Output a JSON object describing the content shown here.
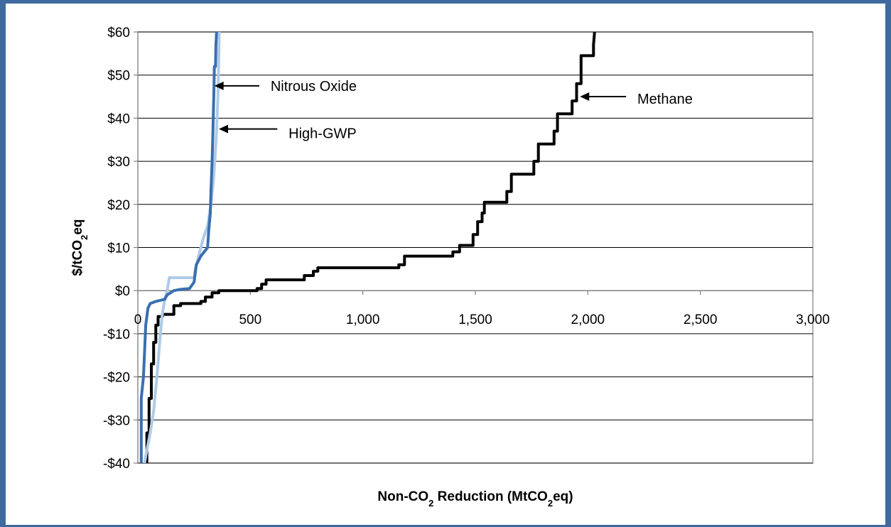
{
  "chart_data": {
    "type": "line",
    "xlabel": "Non-CO2 Reduction (MtCO2eq)",
    "xlabel_parts": {
      "prefix": "Non-CO",
      "sub": "2",
      "suffix": " Reduction (MtCO",
      "sub2": "2",
      "end": "eq)"
    },
    "ylabel_parts": {
      "prefix": "$/tCO",
      "sub": "2",
      "end": "eq"
    },
    "xlim": [
      0,
      3000
    ],
    "ylim": [
      -40,
      60
    ],
    "x_ticks": [
      0,
      500,
      1000,
      1500,
      2000,
      2500,
      3000
    ],
    "x_tick_labels": [
      "0",
      "500",
      "1,000",
      "1,500",
      "2,000",
      "2,500",
      "3,000"
    ],
    "y_ticks": [
      -40,
      -30,
      -20,
      -10,
      0,
      10,
      20,
      30,
      40,
      50,
      60
    ],
    "y_tick_labels": [
      "-$40",
      "-$30",
      "-$20",
      "-$10",
      "$0",
      "$10",
      "$20",
      "$30",
      "$40",
      "$50",
      "$60"
    ],
    "grid": true,
    "annotations": [
      {
        "text": "Nitrous Oxide",
        "arrow_to": [
          340,
          47.5
        ],
        "arrow_from": [
          540,
          47.5
        ],
        "text_at": [
          590,
          47.5
        ]
      },
      {
        "text": "High-GWP",
        "arrow_to": [
          360,
          37.5
        ],
        "arrow_from": [
          620,
          37.5
        ],
        "text_at": [
          670,
          36.5
        ]
      },
      {
        "text": "Methane",
        "arrow_to": [
          1965,
          45
        ],
        "arrow_from": [
          2170,
          45
        ],
        "text_at": [
          2220,
          44.5
        ]
      }
    ],
    "series": [
      {
        "color": "#000000",
        "points": [
          [
            40,
            -40
          ],
          [
            40,
            -33
          ],
          [
            50,
            -33
          ],
          [
            50,
            -25
          ],
          [
            60,
            -25
          ],
          [
            60,
            -17
          ],
          [
            70,
            -17
          ],
          [
            70,
            -12
          ],
          [
            80,
            -12
          ],
          [
            80,
            -8
          ],
          [
            90,
            -8
          ],
          [
            90,
            -6
          ],
          [
            110,
            -6
          ],
          [
            110,
            -5.5
          ],
          [
            160,
            -5.5
          ],
          [
            160,
            -3.5
          ],
          [
            190,
            -3.5
          ],
          [
            190,
            -3
          ],
          [
            280,
            -3
          ],
          [
            280,
            -2.5
          ],
          [
            300,
            -2.5
          ],
          [
            300,
            -1.5
          ],
          [
            330,
            -1.5
          ],
          [
            330,
            -0.5
          ],
          [
            360,
            -0.5
          ],
          [
            360,
            0
          ],
          [
            530,
            0
          ],
          [
            530,
            0.5
          ],
          [
            550,
            0.5
          ],
          [
            550,
            1.5
          ],
          [
            570,
            1.5
          ],
          [
            570,
            2.5
          ],
          [
            740,
            2.5
          ],
          [
            740,
            3.5
          ],
          [
            780,
            3.5
          ],
          [
            780,
            4.5
          ],
          [
            800,
            4.5
          ],
          [
            800,
            5.3
          ],
          [
            1160,
            5.3
          ],
          [
            1160,
            6
          ],
          [
            1185,
            6
          ],
          [
            1185,
            8
          ],
          [
            1400,
            8
          ],
          [
            1400,
            9
          ],
          [
            1430,
            9
          ],
          [
            1430,
            10.5
          ],
          [
            1490,
            10.5
          ],
          [
            1490,
            13
          ],
          [
            1510,
            13
          ],
          [
            1510,
            16
          ],
          [
            1530,
            16
          ],
          [
            1530,
            18
          ],
          [
            1540,
            18
          ],
          [
            1540,
            20.5
          ],
          [
            1640,
            20.5
          ],
          [
            1640,
            23
          ],
          [
            1660,
            23
          ],
          [
            1660,
            27
          ],
          [
            1760,
            27
          ],
          [
            1760,
            30
          ],
          [
            1780,
            30
          ],
          [
            1780,
            34
          ],
          [
            1850,
            34
          ],
          [
            1850,
            37
          ],
          [
            1865,
            37
          ],
          [
            1865,
            41
          ],
          [
            1930,
            41
          ],
          [
            1930,
            44
          ],
          [
            1950,
            44
          ],
          [
            1950,
            48
          ],
          [
            1970,
            48
          ],
          [
            1970,
            54.5
          ],
          [
            2025,
            54.5
          ],
          [
            2025,
            57
          ],
          [
            2030,
            60
          ]
        ]
      },
      {
        "color": "#aecbe8",
        "points": [
          [
            30,
            -40
          ],
          [
            40,
            -37
          ],
          [
            55,
            -33
          ],
          [
            70,
            -28
          ],
          [
            85,
            -20
          ],
          [
            100,
            -10
          ],
          [
            110,
            -5
          ],
          [
            120,
            -2
          ],
          [
            130,
            0
          ],
          [
            140,
            3
          ],
          [
            250,
            3
          ],
          [
            255,
            5
          ],
          [
            275,
            9
          ],
          [
            290,
            12
          ],
          [
            310,
            15
          ],
          [
            325,
            20
          ],
          [
            335,
            25
          ],
          [
            342,
            30
          ],
          [
            348,
            35
          ],
          [
            352,
            40
          ],
          [
            356,
            45
          ],
          [
            358,
            50
          ],
          [
            360,
            55
          ],
          [
            362,
            60
          ]
        ]
      },
      {
        "color": "#3a6fb0",
        "points": [
          [
            15,
            -40
          ],
          [
            15,
            -25
          ],
          [
            25,
            -20
          ],
          [
            35,
            -8
          ],
          [
            45,
            -4
          ],
          [
            55,
            -3
          ],
          [
            80,
            -2.5
          ],
          [
            120,
            -2
          ],
          [
            130,
            -1
          ],
          [
            160,
            0
          ],
          [
            190,
            0.3
          ],
          [
            230,
            0.5
          ],
          [
            250,
            2
          ],
          [
            260,
            6
          ],
          [
            280,
            8
          ],
          [
            310,
            10
          ],
          [
            315,
            14
          ],
          [
            322,
            18
          ],
          [
            325,
            23
          ],
          [
            330,
            30
          ],
          [
            333,
            35
          ],
          [
            336,
            42
          ],
          [
            338,
            46
          ],
          [
            340,
            52
          ],
          [
            345,
            52
          ],
          [
            347,
            57
          ],
          [
            350,
            60
          ]
        ]
      }
    ]
  }
}
